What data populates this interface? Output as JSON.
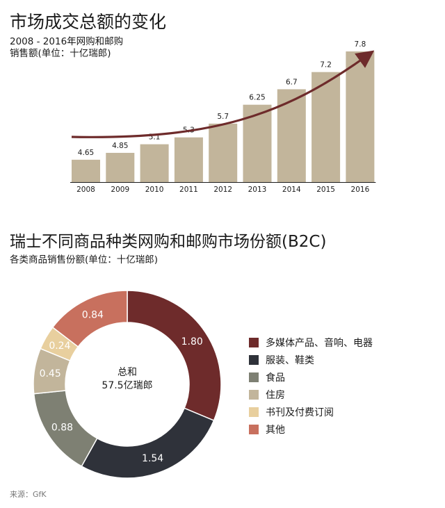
{
  "header": {
    "title": "市场成交总额的变化",
    "subtitle_line1": "2008 - 2016年网购和邮购",
    "subtitle_line2": "销售额(单位：十亿瑞郎)"
  },
  "section2": {
    "title": "瑞士不同商品种类网购和邮购市场份额(B2C)",
    "subtitle": "各类商品销售份额(单位：十亿瑞郎)"
  },
  "donut_center": {
    "line1": "总和",
    "line2": "57.5亿瑞郎"
  },
  "source": "来源：GfK",
  "colors": {
    "bar": "#c2b59b",
    "arrow": "#6e2b2b",
    "multimedia": "#6e2b2b",
    "clothing": "#2f323a",
    "food": "#7e8073",
    "home": "#c2b59b",
    "books": "#e8cf9e",
    "other": "#c8705e"
  },
  "chart_data": [
    {
      "type": "bar",
      "title": "市场成交总额的变化",
      "categories": [
        "2008",
        "2009",
        "2010",
        "2011",
        "2012",
        "2013",
        "2014",
        "2015",
        "2016"
      ],
      "values": [
        4.65,
        4.85,
        5.1,
        5.3,
        5.7,
        6.25,
        6.7,
        7.2,
        7.8
      ],
      "value_labels": [
        "4.65",
        "4.85",
        "5.1",
        "5.3",
        "5.7",
        "6.25",
        "6.7",
        "7.2",
        "7.8"
      ],
      "ylim": [
        4.0,
        7.8
      ],
      "xlabel": "",
      "ylabel": "",
      "grid": false,
      "trend_arrow": true
    },
    {
      "type": "pie",
      "style": "donut",
      "title": "瑞士不同商品种类网购和邮购市场份额(B2C)",
      "series": [
        {
          "name": "多媒体产品、音响、电器",
          "value": 1.8,
          "label": "1.80",
          "color_key": "multimedia"
        },
        {
          "name": "服装、鞋类",
          "value": 1.54,
          "label": "1.54",
          "color_key": "clothing"
        },
        {
          "name": "食品",
          "value": 0.88,
          "label": "0.88",
          "color_key": "food"
        },
        {
          "name": "住房",
          "value": 0.45,
          "label": "0.45",
          "color_key": "home"
        },
        {
          "name": "书刊及付费订阅",
          "value": 0.24,
          "label": "0.24",
          "color_key": "books"
        },
        {
          "name": "其他",
          "value": 0.84,
          "label": "0.84",
          "color_key": "other"
        }
      ],
      "legend": "right"
    }
  ]
}
